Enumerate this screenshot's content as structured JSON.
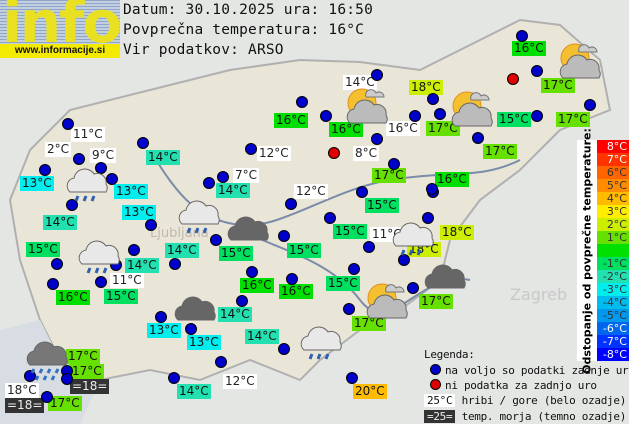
{
  "header": {
    "logo_text": "info",
    "logo_url": "www.informacije.si",
    "date_line": "Datum: 30.10.2025 ura: 16:50",
    "avg_line": "Povprečna temperatura: 16°C",
    "source_line": "Vir podatkov: ARSO"
  },
  "average_temp": 16,
  "stations": [
    {
      "t": "16°C",
      "v": 16
    },
    {
      "t": "14°C",
      "k": "m"
    },
    {
      "t": "18°C",
      "v": 18
    },
    {
      "t": "16°C",
      "v": 16
    },
    {
      "t": "16°C",
      "v": 16
    },
    {
      "t": "16°C",
      "k": "m"
    },
    {
      "t": "17°C",
      "v": 17
    },
    {
      "t": "15°C",
      "v": 15
    },
    {
      "t": "17°C",
      "v": 17
    },
    {
      "t": "17°C",
      "v": 17
    },
    {
      "t": "17°C",
      "v": 17
    },
    {
      "t": "11°C",
      "k": "m"
    },
    {
      "t": "2°C",
      "k": "m"
    },
    {
      "t": "9°C",
      "k": "m"
    },
    {
      "t": "14°C",
      "v": 14
    },
    {
      "t": "12°C",
      "k": "m"
    },
    {
      "t": "8°C",
      "k": "m"
    },
    {
      "t": "17°C",
      "v": 17
    },
    {
      "t": "16°C",
      "v": 16
    },
    {
      "t": "13°C",
      "v": 13
    },
    {
      "t": "7°C",
      "k": "m"
    },
    {
      "t": "13°C",
      "v": 13
    },
    {
      "t": "14°C",
      "v": 14
    },
    {
      "t": "12°C",
      "k": "m"
    },
    {
      "t": "15°C",
      "v": 15
    },
    {
      "t": "13°C",
      "v": 13
    },
    {
      "t": "14°C",
      "v": 14
    },
    {
      "t": "15°C",
      "v": 15
    },
    {
      "t": "11°C",
      "k": "m"
    },
    {
      "t": "18°C",
      "v": 18
    },
    {
      "t": "18°C",
      "v": 18
    },
    {
      "t": "15°C",
      "v": 15
    },
    {
      "t": "14°C",
      "v": 14
    },
    {
      "t": "15°C",
      "v": 15
    },
    {
      "t": "15°C",
      "v": 15
    },
    {
      "t": "14°C",
      "v": 14
    },
    {
      "t": "11°C",
      "k": "m"
    },
    {
      "t": "16°C",
      "v": 16
    },
    {
      "t": "16°C",
      "v": 16
    },
    {
      "t": "15°C",
      "v": 15
    },
    {
      "t": "16°C",
      "v": 16
    },
    {
      "t": "15°C",
      "v": 15
    },
    {
      "t": "17°C",
      "v": 17
    },
    {
      "t": "14°C",
      "v": 14
    },
    {
      "t": "17°C",
      "v": 17
    },
    {
      "t": "13°C",
      "v": 13
    },
    {
      "t": "13°C",
      "v": 13
    },
    {
      "t": "14°C",
      "v": 14
    },
    {
      "t": "17°C",
      "v": 17
    },
    {
      "t": "17°C",
      "v": 17
    },
    {
      "t": "=18=",
      "k": "s"
    },
    {
      "t": "18°C",
      "k": "m"
    },
    {
      "t": "=18=",
      "k": "s"
    },
    {
      "t": "17°C",
      "v": 17
    },
    {
      "t": "12°C",
      "k": "m"
    },
    {
      "t": "14°C",
      "v": 14
    },
    {
      "t": "20°C",
      "v": 20
    }
  ],
  "weather_icons": [
    "sun-cloud",
    "sun-cloud",
    "sun-cloud",
    "sun-cloud",
    "rain-cloud",
    "rain-cloud",
    "rain-cloud",
    "rain-cloud",
    "rain-cloud",
    "heavy-rain-cloud",
    "dark-cloud",
    "dark-cloud",
    "dark-cloud"
  ],
  "scale": {
    "title": "Odstopanje od povprečne temperature:",
    "steps": [
      {
        "label": "8°C",
        "color": "#ff0000"
      },
      {
        "label": "7°C",
        "color": "#ff3300"
      },
      {
        "label": "6°C",
        "color": "#ff6600"
      },
      {
        "label": "5°C",
        "color": "#ff8c00"
      },
      {
        "label": "4°C",
        "color": "#ffbb00"
      },
      {
        "label": "3°C",
        "color": "#ffee00"
      },
      {
        "label": "2°C",
        "color": "#ccee00"
      },
      {
        "label": "1°C",
        "color": "#66e000"
      },
      {
        "label": "",
        "color": "#00e000"
      },
      {
        "label": "-1°C",
        "color": "#00e060"
      },
      {
        "label": "-2°C",
        "color": "#22e0b0"
      },
      {
        "label": "-3°C",
        "color": "#00eeee"
      },
      {
        "label": "-4°C",
        "color": "#00bbee"
      },
      {
        "label": "-5°C",
        "color": "#0099ee"
      },
      {
        "label": "-6°C",
        "color": "#0066ee"
      },
      {
        "label": "-7°C",
        "color": "#0033ff"
      },
      {
        "label": "-8°C",
        "color": "#0000ff"
      }
    ]
  },
  "legend": {
    "title": "Legenda:",
    "available": "na voljo so podatki zadnje ure",
    "missing": "ni podatka za zadnjo uro",
    "mountain_sample": "25°C",
    "mountain_text": "hribi / gore (belo ozadje)",
    "sea_sample": "=25=",
    "sea_text": "temp. morja (temno ozadje)"
  },
  "map_labels": {
    "zagreb": "Zagreb",
    "ljubljana": "Ljubljana"
  }
}
